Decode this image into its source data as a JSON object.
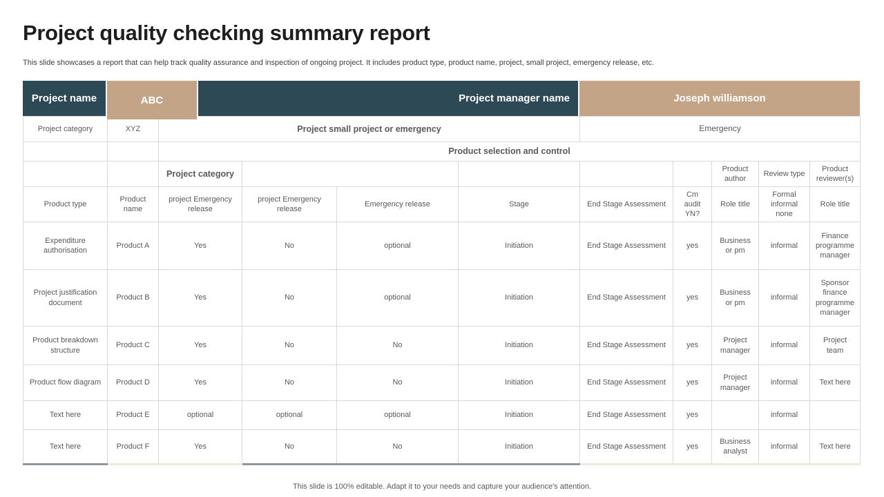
{
  "slide": {
    "title": "Project quality checking summary report",
    "subtitle": "This slide showcases a report that can help track quality assurance and inspection of ongoing project. It includes product type, product name, project, small project, emergency release, etc.",
    "footer_note": "This slide is 100% editable. Adapt it to your needs and capture your audience's attention."
  },
  "colors": {
    "header_dark_teal": "#2d4956",
    "header_tan": "#c3a487",
    "accent_slate": "#8b97a1",
    "accent_cream": "#efe9da",
    "table_text": "#595959",
    "grid_border": "#d9d9d9"
  },
  "header_band": {
    "project_name_label": "Project name",
    "project_name_value": "ABC",
    "project_manager_label": "Project manager name",
    "project_manager_value": "Joseph williamson"
  },
  "info_rows": {
    "project_category_label": "Project category",
    "project_category_value": "XYZ",
    "small_project_label": "Project small project or emergency",
    "small_project_value": "Emergency",
    "section_header": "Product selection and control",
    "subsection_header": "Project category",
    "product_author_label": "Product author",
    "review_type_label": "Review type",
    "product_reviewer_label": "Product reviewer(s)"
  },
  "table": {
    "column_headers": [
      "Product type",
      "Product name",
      "project Emergency release",
      "project Emergency release",
      "Emergency release",
      "Stage",
      "End Stage Assessment",
      "Cm audit YN?",
      "Role title",
      "Formal informal none",
      "Role title"
    ],
    "rows": [
      [
        "Expenditure authorisation",
        "Product A",
        "Yes",
        "No",
        "optional",
        "Initiation",
        "End Stage Assessment",
        "yes",
        "Business or pm",
        "informal",
        "Finance programme manager"
      ],
      [
        "Project justification document",
        "Product B",
        "Yes",
        "No",
        "optional",
        "Initiation",
        "End Stage Assessment",
        "yes",
        "Business or pm",
        "informal",
        "Sponsor finance programme manager"
      ],
      [
        "Product breakdown structure",
        "Product C",
        "Yes",
        "No",
        "No",
        "Initiation",
        "End Stage Assessment",
        "yes",
        "Project manager",
        "informal",
        "Project team"
      ],
      [
        "Product flow diagram",
        "Product D",
        "Yes",
        "No",
        "No",
        "Initiation",
        "End Stage Assessment",
        "yes",
        "Project manager",
        "informal",
        "Text here"
      ],
      [
        "Text here",
        "Product E",
        "optional",
        "optional",
        "optional",
        "Initiation",
        "End Stage Assessment",
        "yes",
        "",
        "informal",
        ""
      ],
      [
        "Text here",
        "Product F",
        "Yes",
        "No",
        "No",
        "Initiation",
        "End Stage Assessment",
        "yes",
        "Business analyst",
        "informal",
        "Text here"
      ]
    ]
  }
}
